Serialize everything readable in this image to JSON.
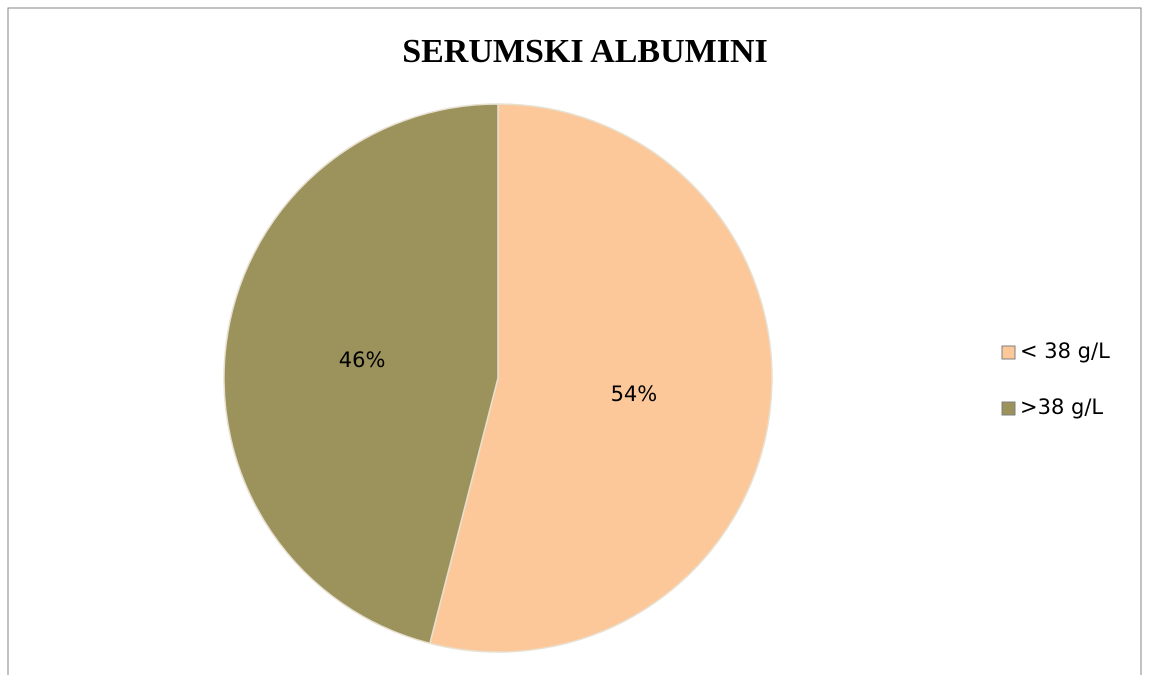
{
  "chart_data": {
    "type": "pie",
    "title": "SERUMSKI ALBUMINI",
    "categories": [
      "< 38 g/L",
      ">38 g/L"
    ],
    "values": [
      54,
      46
    ],
    "value_labels": [
      "54%",
      "46%"
    ],
    "colors": [
      "#fcc89a",
      "#9c935c"
    ],
    "legend": "right"
  }
}
